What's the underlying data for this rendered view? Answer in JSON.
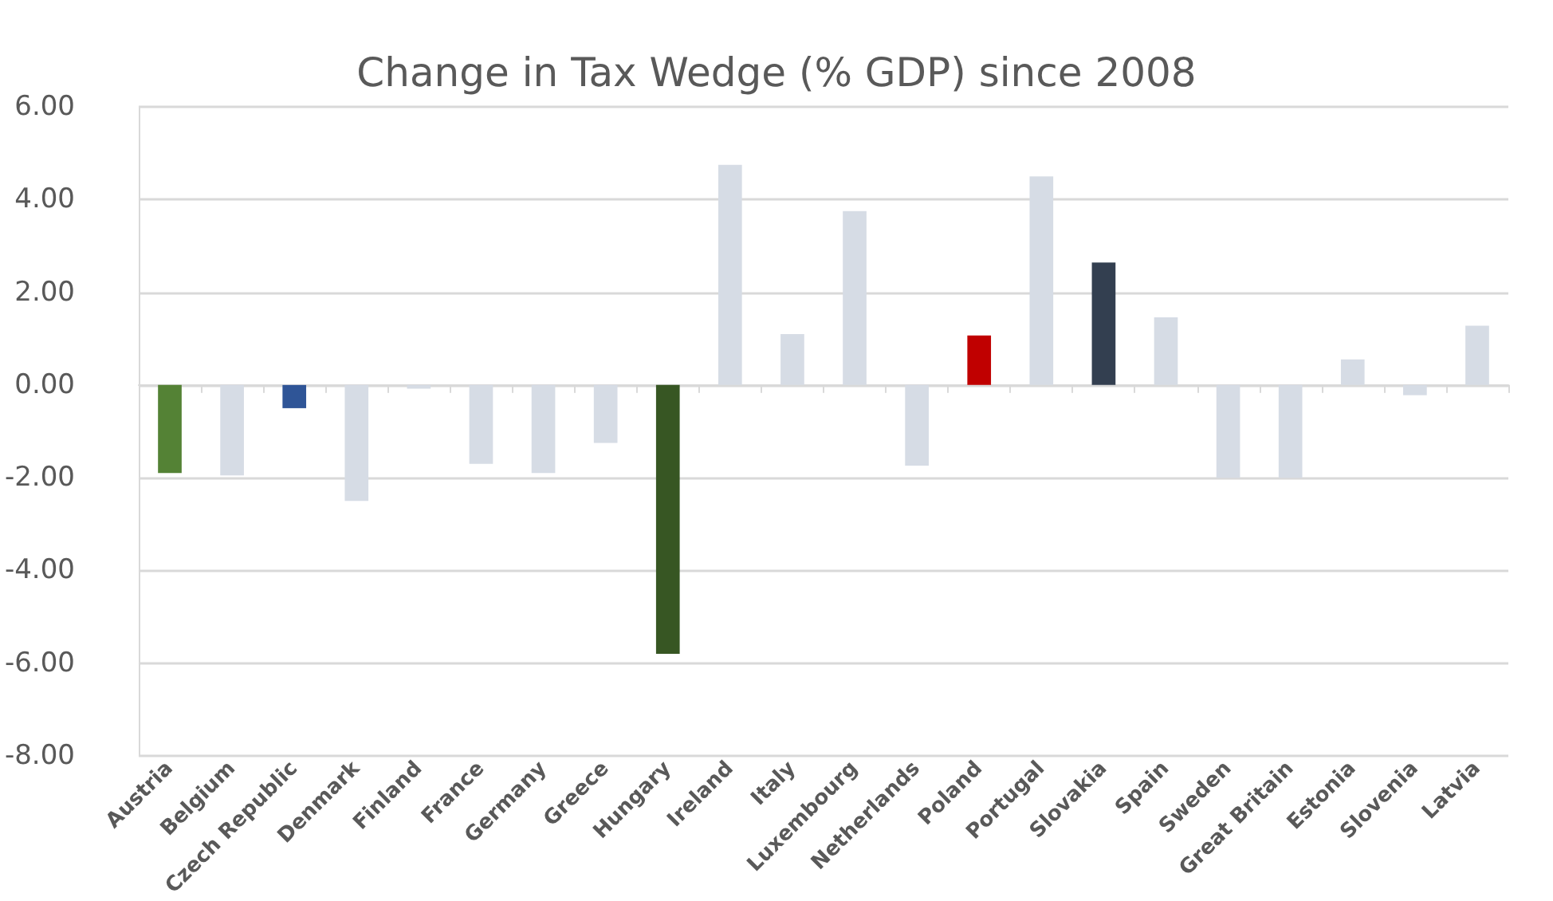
{
  "chart_data": {
    "type": "bar",
    "title": "Change in Tax Wedge (% GDP) since 2008",
    "categories": [
      "Austria",
      "Belgium",
      "Czech Republic",
      "Denmark",
      "Finland",
      "France",
      "Germany",
      "Greece",
      "Hungary",
      "Ireland",
      "Italy",
      "Luxembourg",
      "Netherlands",
      "Poland",
      "Portugal",
      "Slovakia",
      "Spain",
      "Sweden",
      "Great Britain",
      "Estonia",
      "Slovenia",
      "Latvia"
    ],
    "values": [
      -1.9,
      -1.95,
      -0.5,
      -2.5,
      -0.08,
      -1.7,
      -1.9,
      -1.25,
      -5.8,
      4.75,
      1.1,
      3.75,
      -1.74,
      1.07,
      4.5,
      2.64,
      1.46,
      -2.0,
      -2.0,
      0.55,
      -0.22,
      1.28
    ],
    "colors": [
      "#548235",
      "#d6dce5",
      "#2f5597",
      "#d6dce5",
      "#d6dce5",
      "#d6dce5",
      "#d6dce5",
      "#d6dce5",
      "#375623",
      "#d6dce5",
      "#d6dce5",
      "#d6dce5",
      "#d6dce5",
      "#c00000",
      "#d6dce5",
      "#333f50",
      "#d6dce5",
      "#d6dce5",
      "#d6dce5",
      "#d6dce5",
      "#d6dce5",
      "#d6dce5"
    ],
    "ylim": [
      -8,
      6
    ],
    "yticks": [
      {
        "value": -8,
        "label": "-8.00"
      },
      {
        "value": -6,
        "label": "-6.00"
      },
      {
        "value": -4,
        "label": "-4.00"
      },
      {
        "value": -2,
        "label": "-2.00"
      },
      {
        "value": 0,
        "label": "0.00"
      },
      {
        "value": 2,
        "label": "2.00"
      },
      {
        "value": 4,
        "label": "4.00"
      },
      {
        "value": 6,
        "label": "6.00"
      }
    ],
    "grid": "y"
  }
}
